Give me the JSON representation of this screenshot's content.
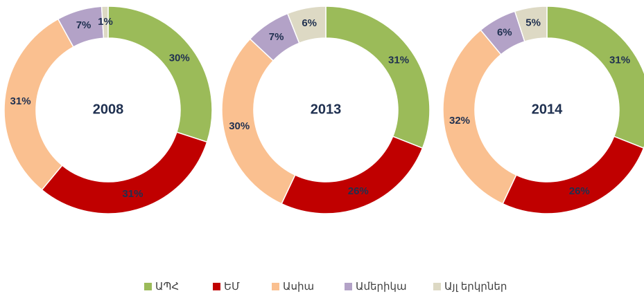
{
  "chart_data": [
    {
      "type": "donut",
      "title": "2008",
      "categories": [
        "ԱՊՀ",
        "ԵՄ",
        "Ասիա",
        "Ամերիկա",
        "Այլ երկրներ"
      ],
      "colors": [
        "#9bbb59",
        "#c00000",
        "#fac090",
        "#b3a2c7",
        "#ddd9c4"
      ],
      "values": [
        30,
        31,
        31,
        7,
        1
      ],
      "value_labels": [
        "30%",
        "31%",
        "31%",
        "7%",
        "1%"
      ]
    },
    {
      "type": "donut",
      "title": "2013",
      "values": [
        31,
        26,
        30,
        7,
        6
      ],
      "value_labels": [
        "31%",
        "26%",
        "30%",
        "7%",
        "6%"
      ]
    },
    {
      "type": "donut",
      "title": "2014",
      "values": [
        31,
        26,
        32,
        6,
        5
      ],
      "value_labels": [
        "31%",
        "26%",
        "32%",
        "6%",
        "5%"
      ]
    }
  ]
}
